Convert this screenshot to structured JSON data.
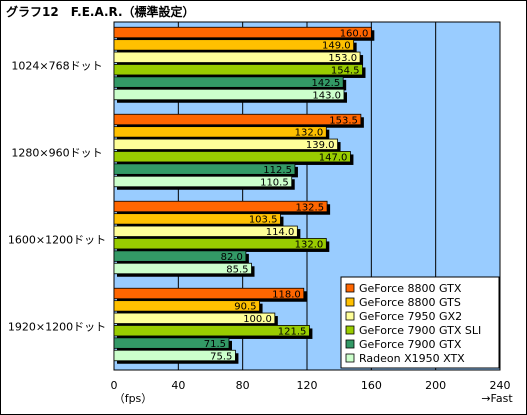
{
  "title": "グラフ12　F.E.A.R.（標準設定）",
  "chart_data": {
    "type": "bar",
    "orientation": "horizontal",
    "title": "グラフ12　F.E.A.R.（標準設定）",
    "xlabel_left": "（fps）",
    "xlabel_right": "→Fast",
    "xlim": [
      0,
      240
    ],
    "xticks": [
      "0",
      "40",
      "80",
      "120",
      "160",
      "200",
      "240"
    ],
    "grid": true,
    "legend_position": "bottom-right",
    "categories": [
      "1024×768ドット",
      "1280×960ドット",
      "1600×1200ドット",
      "1920×1200ドット"
    ],
    "series": [
      {
        "name": "GeForce 8800 GTX",
        "color": "#ff6600",
        "values": [
          160.0,
          153.5,
          132.5,
          118.0
        ],
        "labels": [
          "160.0",
          "153.5",
          "132.5",
          "118.0"
        ]
      },
      {
        "name": "GeForce 8800 GTS",
        "color": "#ffc000",
        "values": [
          149.0,
          132.0,
          103.5,
          90.5
        ],
        "labels": [
          "149.0",
          "132.0",
          "103.5",
          "90.5"
        ]
      },
      {
        "name": "GeForce 7950 GX2",
        "color": "#ffff99",
        "values": [
          153.0,
          139.0,
          114.0,
          100.0
        ],
        "labels": [
          "153.0",
          "139.0",
          "114.0",
          "100.0"
        ]
      },
      {
        "name": "GeForce 7900 GTX SLI",
        "color": "#99cc00",
        "values": [
          154.5,
          147.0,
          132.0,
          121.5
        ],
        "labels": [
          "154.5",
          "147.0",
          "132.0",
          "121.5"
        ]
      },
      {
        "name": "GeForce 7900 GTX",
        "color": "#339966",
        "values": [
          142.5,
          112.5,
          82.0,
          71.5
        ],
        "labels": [
          "142.5",
          "112.5",
          "82.0",
          "71.5"
        ]
      },
      {
        "name": "Radeon X1950 XTX",
        "color": "#ccffcc",
        "values": [
          143.0,
          110.5,
          85.5,
          75.5
        ],
        "labels": [
          "143.0",
          "110.5",
          "85.5",
          "75.5"
        ]
      }
    ],
    "plot_background": "#99ccff"
  }
}
